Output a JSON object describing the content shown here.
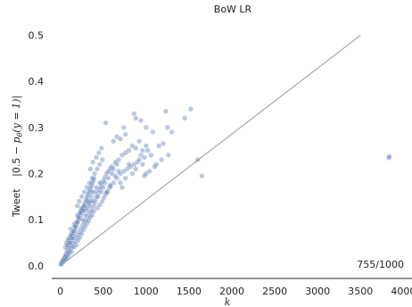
{
  "chart_data": {
    "type": "scatter",
    "title": "BoW LR",
    "xlabel": "k",
    "ylabel": {
      "prefix": "Tweet",
      "math_a": "|0.5 − ",
      "math_p": "p",
      "math_sub": "θ",
      "math_b": "(y = 1)|"
    },
    "xlim": [
      -100,
      4100
    ],
    "ylim": [
      -0.012,
      0.53
    ],
    "xticks": [
      0,
      500,
      1000,
      1500,
      2000,
      2500,
      3000,
      3500,
      4000
    ],
    "xtick_labels": [
      "0",
      "500",
      "1000",
      "1500",
      "2000",
      "2500",
      "3000",
      "3500",
      "4000"
    ],
    "yticks": [
      0.0,
      0.1,
      0.2,
      0.3,
      0.4,
      0.5
    ],
    "ytick_labels": [
      "0.0",
      "0.1",
      "0.2",
      "0.3",
      "0.4",
      "0.5"
    ],
    "reference_line": {
      "from": [
        0,
        0
      ],
      "to": [
        3500,
        0.5
      ],
      "color": "#999999"
    },
    "point_color": "#4c72b0",
    "grid": false,
    "annotation": "755/1000",
    "points": [
      [
        5,
        0.003
      ],
      [
        10,
        0.006
      ],
      [
        15,
        0.004
      ],
      [
        20,
        0.008
      ],
      [
        25,
        0.01
      ],
      [
        30,
        0.012
      ],
      [
        35,
        0.015
      ],
      [
        40,
        0.009
      ],
      [
        45,
        0.013
      ],
      [
        50,
        0.018
      ],
      [
        55,
        0.02
      ],
      [
        60,
        0.014
      ],
      [
        65,
        0.025
      ],
      [
        70,
        0.022
      ],
      [
        75,
        0.03
      ],
      [
        80,
        0.017
      ],
      [
        85,
        0.035
      ],
      [
        90,
        0.028
      ],
      [
        95,
        0.04
      ],
      [
        100,
        0.024
      ],
      [
        105,
        0.045
      ],
      [
        110,
        0.032
      ],
      [
        115,
        0.05
      ],
      [
        120,
        0.038
      ],
      [
        125,
        0.055
      ],
      [
        130,
        0.03
      ],
      [
        135,
        0.06
      ],
      [
        140,
        0.042
      ],
      [
        145,
        0.065
      ],
      [
        150,
        0.048
      ],
      [
        155,
        0.07
      ],
      [
        160,
        0.04
      ],
      [
        165,
        0.075
      ],
      [
        170,
        0.052
      ],
      [
        175,
        0.08
      ],
      [
        180,
        0.06
      ],
      [
        185,
        0.085
      ],
      [
        190,
        0.045
      ],
      [
        195,
        0.09
      ],
      [
        200,
        0.066
      ],
      [
        205,
        0.095
      ],
      [
        210,
        0.055
      ],
      [
        215,
        0.1
      ],
      [
        220,
        0.072
      ],
      [
        225,
        0.105
      ],
      [
        230,
        0.062
      ],
      [
        235,
        0.11
      ],
      [
        240,
        0.08
      ],
      [
        245,
        0.115
      ],
      [
        250,
        0.07
      ],
      [
        255,
        0.12
      ],
      [
        260,
        0.088
      ],
      [
        265,
        0.125
      ],
      [
        270,
        0.078
      ],
      [
        275,
        0.13
      ],
      [
        280,
        0.095
      ],
      [
        285,
        0.135
      ],
      [
        290,
        0.085
      ],
      [
        295,
        0.14
      ],
      [
        300,
        0.1
      ],
      [
        305,
        0.145
      ],
      [
        310,
        0.092
      ],
      [
        315,
        0.15
      ],
      [
        320,
        0.108
      ],
      [
        325,
        0.155
      ],
      [
        330,
        0.098
      ],
      [
        335,
        0.16
      ],
      [
        340,
        0.115
      ],
      [
        345,
        0.165
      ],
      [
        350,
        0.105
      ],
      [
        355,
        0.17
      ],
      [
        360,
        0.12
      ],
      [
        365,
        0.175
      ],
      [
        370,
        0.11
      ],
      [
        375,
        0.18
      ],
      [
        380,
        0.128
      ],
      [
        385,
        0.185
      ],
      [
        390,
        0.118
      ],
      [
        395,
        0.19
      ],
      [
        400,
        0.135
      ],
      [
        410,
        0.142
      ],
      [
        420,
        0.15
      ],
      [
        430,
        0.125
      ],
      [
        440,
        0.158
      ],
      [
        450,
        0.165
      ],
      [
        460,
        0.132
      ],
      [
        470,
        0.17
      ],
      [
        480,
        0.178
      ],
      [
        490,
        0.14
      ],
      [
        500,
        0.185
      ],
      [
        510,
        0.148
      ],
      [
        520,
        0.192
      ],
      [
        530,
        0.155
      ],
      [
        540,
        0.2
      ],
      [
        550,
        0.16
      ],
      [
        560,
        0.205
      ],
      [
        570,
        0.168
      ],
      [
        580,
        0.21
      ],
      [
        590,
        0.172
      ],
      [
        600,
        0.215
      ],
      [
        620,
        0.18
      ],
      [
        640,
        0.225
      ],
      [
        660,
        0.19
      ],
      [
        680,
        0.23
      ],
      [
        700,
        0.2
      ],
      [
        720,
        0.24
      ],
      [
        740,
        0.205
      ],
      [
        760,
        0.245
      ],
      [
        780,
        0.21
      ],
      [
        800,
        0.25
      ],
      [
        820,
        0.215
      ],
      [
        840,
        0.26
      ],
      [
        860,
        0.22
      ],
      [
        880,
        0.255
      ],
      [
        900,
        0.225
      ],
      [
        920,
        0.27
      ],
      [
        940,
        0.24
      ],
      [
        960,
        0.25
      ],
      [
        980,
        0.235
      ],
      [
        1000,
        0.26
      ],
      [
        530,
        0.31
      ],
      [
        740,
        0.3
      ],
      [
        860,
        0.33
      ],
      [
        880,
        0.32
      ],
      [
        940,
        0.315
      ],
      [
        1000,
        0.3
      ],
      [
        1080,
        0.29
      ],
      [
        1150,
        0.26
      ],
      [
        1200,
        0.265
      ],
      [
        1230,
        0.335
      ],
      [
        1250,
        0.3
      ],
      [
        1300,
        0.29
      ],
      [
        1450,
        0.32
      ],
      [
        1520,
        0.34
      ],
      [
        1600,
        0.23
      ],
      [
        1650,
        0.195
      ],
      [
        1100,
        0.215
      ],
      [
        1040,
        0.205
      ],
      [
        1000,
        0.2
      ],
      [
        980,
        0.195
      ],
      [
        120,
        0.08
      ],
      [
        140,
        0.06
      ],
      [
        160,
        0.09
      ],
      [
        200,
        0.11
      ],
      [
        240,
        0.12
      ],
      [
        260,
        0.1
      ],
      [
        280,
        0.13
      ],
      [
        300,
        0.12
      ],
      [
        320,
        0.14
      ],
      [
        340,
        0.13
      ],
      [
        360,
        0.15
      ],
      [
        380,
        0.14
      ],
      [
        400,
        0.16
      ],
      [
        420,
        0.17
      ],
      [
        440,
        0.15
      ],
      [
        460,
        0.18
      ],
      [
        480,
        0.16
      ],
      [
        500,
        0.17
      ],
      [
        520,
        0.18
      ],
      [
        540,
        0.16
      ],
      [
        560,
        0.19
      ],
      [
        580,
        0.175
      ],
      [
        600,
        0.2
      ],
      [
        620,
        0.21
      ],
      [
        640,
        0.195
      ],
      [
        660,
        0.22
      ],
      [
        680,
        0.205
      ],
      [
        700,
        0.18
      ],
      [
        720,
        0.17
      ],
      [
        760,
        0.19
      ],
      [
        800,
        0.22
      ],
      [
        840,
        0.2
      ],
      [
        880,
        0.21
      ],
      [
        920,
        0.23
      ],
      [
        960,
        0.22
      ],
      [
        1020,
        0.25
      ],
      [
        1060,
        0.24
      ],
      [
        1120,
        0.22
      ],
      [
        1180,
        0.23
      ],
      [
        1260,
        0.24
      ],
      [
        60,
        0.04
      ],
      [
        70,
        0.05
      ],
      [
        80,
        0.045
      ],
      [
        90,
        0.055
      ],
      [
        100,
        0.06
      ],
      [
        110,
        0.05
      ],
      [
        120,
        0.065
      ],
      [
        130,
        0.07
      ],
      [
        150,
        0.075
      ],
      [
        170,
        0.085
      ],
      [
        190,
        0.095
      ],
      [
        210,
        0.105
      ],
      [
        230,
        0.115
      ],
      [
        250,
        0.125
      ],
      [
        270,
        0.12
      ],
      [
        290,
        0.11
      ],
      [
        310,
        0.125
      ],
      [
        330,
        0.135
      ],
      [
        350,
        0.14
      ],
      [
        370,
        0.16
      ],
      [
        200,
        0.13
      ],
      [
        220,
        0.14
      ],
      [
        250,
        0.15
      ],
      [
        280,
        0.16
      ],
      [
        310,
        0.17
      ],
      [
        340,
        0.18
      ],
      [
        370,
        0.19
      ],
      [
        400,
        0.2
      ],
      [
        430,
        0.21
      ],
      [
        460,
        0.22
      ],
      [
        490,
        0.23
      ],
      [
        350,
        0.21
      ],
      [
        380,
        0.225
      ],
      [
        420,
        0.235
      ],
      [
        450,
        0.245
      ],
      [
        480,
        0.255
      ],
      [
        620,
        0.27
      ],
      [
        660,
        0.28
      ],
      [
        700,
        0.275
      ],
      [
        760,
        0.285
      ],
      [
        3830,
        0.234
      ],
      [
        3835,
        0.237
      ]
    ]
  }
}
